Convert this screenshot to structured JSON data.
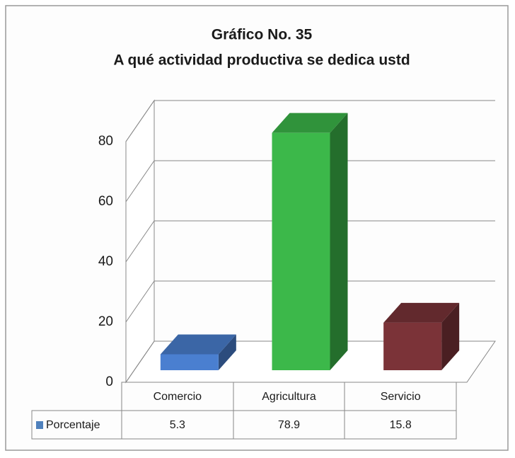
{
  "chart_data": {
    "type": "bar3d",
    "title": "Gráfico No. 35",
    "subtitle": "A qué actividad productiva se dedica ustd",
    "categories": [
      "Comercio",
      "Agricultura",
      "Servicio"
    ],
    "series": [
      {
        "name": "Porcentaje",
        "color": "#4f81bd",
        "colors": [
          "#4a7fd0",
          "#3cb84a",
          "#7b3338"
        ],
        "values": [
          5.3,
          78.9,
          15.8
        ]
      }
    ],
    "ylim": [
      0,
      80
    ],
    "yticks": [
      0,
      20,
      40,
      60,
      80
    ],
    "grid": true
  }
}
